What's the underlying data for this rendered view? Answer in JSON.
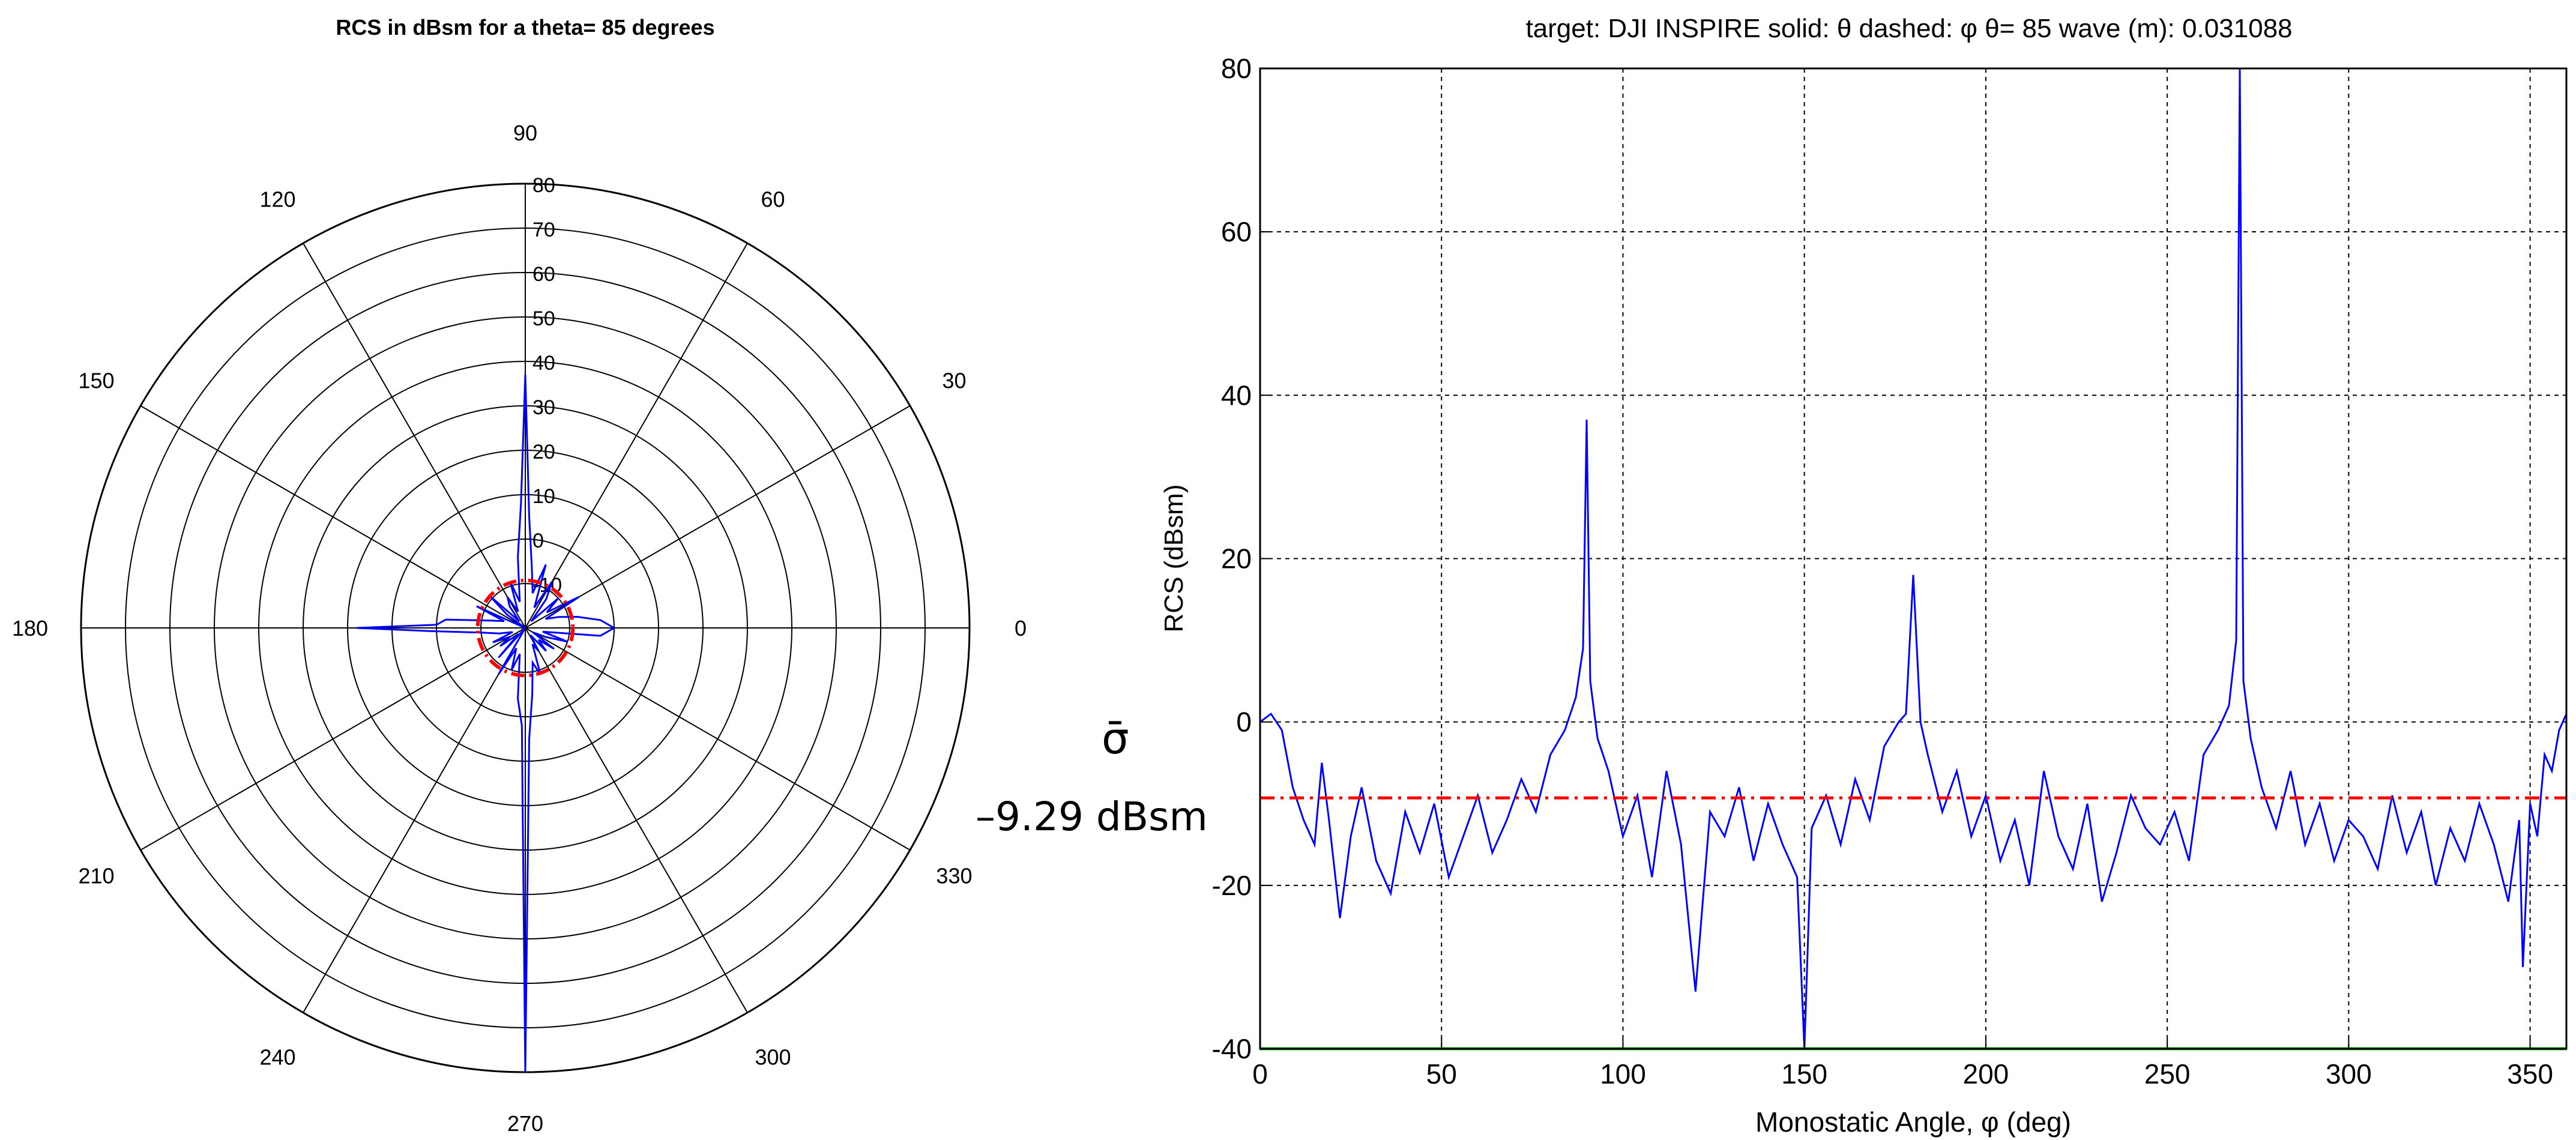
{
  "chart_data": [
    {
      "type": "polar",
      "title": "RCS in dBsm for a theta= 85 degrees",
      "angle_ticks": [
        "0",
        "30",
        "60",
        "90",
        "120",
        "150",
        "180",
        "210",
        "240",
        "270",
        "300",
        "330"
      ],
      "radial_ticks": [
        "80",
        "70",
        "60",
        "50",
        "40",
        "30",
        "20",
        "10",
        "0",
        "-10"
      ],
      "rlim": [
        -20,
        80
      ],
      "grid": true,
      "series": [
        {
          "color": "#0000ff",
          "style": "solid",
          "theta_deg": [
            0,
            6,
            12,
            18,
            24,
            30,
            36,
            42,
            48,
            54,
            60,
            66,
            72,
            78,
            84,
            88,
            90,
            92,
            96,
            102,
            108,
            114,
            120,
            126,
            132,
            138,
            144,
            150,
            156,
            162,
            168,
            174,
            178,
            180,
            182,
            186,
            192,
            198,
            204,
            210,
            216,
            222,
            228,
            234,
            240,
            246,
            252,
            258,
            264,
            268,
            270,
            272,
            276,
            282,
            288,
            294,
            300,
            306,
            312,
            318,
            324,
            330,
            336,
            342,
            348,
            354,
            360
          ],
          "r_dbsm": [
            0,
            -3,
            -8,
            -12,
            -15,
            -6,
            -14,
            -10,
            -18,
            -12,
            -8,
            -15,
            -5,
            -12,
            -6,
            5,
            37,
            8,
            -4,
            -14,
            -9,
            -16,
            -12,
            -14,
            -18,
            -9,
            -15,
            -30,
            -8,
            -15,
            -12,
            -2,
            0,
            18,
            1,
            -10,
            -14,
            -17,
            -12,
            -16,
            -13,
            -18,
            -11,
            -20,
            -8,
            -15,
            -10,
            -14,
            -4,
            2,
            80,
            5,
            -5,
            -12,
            -9,
            -16,
            -14,
            -18,
            -13,
            -16,
            -12,
            -18,
            -15,
            -10,
            -16,
            -3,
            0
          ]
        },
        {
          "color": "#ff0000",
          "style": "dash-dot",
          "constant_dbsm": -9.29
        }
      ]
    },
    {
      "type": "line",
      "title": "target: DJI INSPIRE   solid: θ       dashed: φ       θ= 85     wave (m): 0.031088",
      "xlabel": "Monostatic Angle, φ (deg)",
      "ylabel": "RCS (dBsm)",
      "xlim": [
        0,
        360
      ],
      "ylim": [
        -40,
        80
      ],
      "xticks": [
        0,
        50,
        100,
        150,
        200,
        250,
        300,
        350
      ],
      "yticks": [
        -40,
        -20,
        0,
        20,
        40,
        60,
        80
      ],
      "grid": true,
      "series": [
        {
          "color": "#0000ff",
          "style": "solid",
          "x": [
            0,
            3,
            6,
            9,
            12,
            15,
            17,
            19,
            22,
            25,
            28,
            32,
            36,
            40,
            44,
            48,
            52,
            56,
            60,
            64,
            68,
            72,
            76,
            80,
            84,
            87,
            89,
            90,
            91,
            93,
            96,
            100,
            104,
            108,
            112,
            116,
            120,
            124,
            128,
            132,
            136,
            140,
            144,
            148,
            150,
            152,
            156,
            160,
            164,
            168,
            172,
            176,
            178,
            180,
            182,
            184,
            188,
            192,
            196,
            200,
            204,
            208,
            212,
            216,
            220,
            224,
            228,
            232,
            236,
            240,
            244,
            248,
            252,
            256,
            260,
            264,
            267,
            269,
            270,
            271,
            273,
            276,
            280,
            284,
            288,
            292,
            296,
            300,
            304,
            308,
            312,
            316,
            320,
            324,
            328,
            332,
            336,
            340,
            344,
            347,
            348,
            350,
            352,
            354,
            356,
            358,
            360
          ],
          "y": [
            0,
            1,
            -1,
            -8,
            -12,
            -15,
            -5,
            -12,
            -24,
            -14,
            -8,
            -17,
            -21,
            -11,
            -16,
            -10,
            -19,
            -14,
            -9,
            -16,
            -12,
            -7,
            -11,
            -4,
            -1,
            3,
            9,
            37,
            5,
            -2,
            -6,
            -14,
            -9,
            -19,
            -6,
            -15,
            -33,
            -11,
            -14,
            -8,
            -17,
            -10,
            -15,
            -19,
            -40,
            -13,
            -9,
            -15,
            -7,
            -12,
            -3,
            0,
            1,
            18,
            0,
            -4,
            -11,
            -6,
            -14,
            -9,
            -17,
            -12,
            -20,
            -6,
            -14,
            -18,
            -10,
            -22,
            -16,
            -9,
            -13,
            -15,
            -11,
            -17,
            -4,
            -1,
            2,
            10,
            80,
            5,
            -2,
            -8,
            -13,
            -6,
            -15,
            -10,
            -17,
            -12,
            -14,
            -18,
            -9,
            -16,
            -11,
            -20,
            -13,
            -17,
            -10,
            -15,
            -22,
            -12,
            -30,
            -10,
            -14,
            -4,
            -6,
            -1,
            1
          ],
          "visible_peaks": [
            {
              "x": 90,
              "y": 37
            },
            {
              "x": 180,
              "y": 18
            },
            {
              "x": 270,
              "y": 80
            }
          ]
        },
        {
          "color": "#ff0000",
          "style": "dash-dot",
          "constant_y": -9.29
        },
        {
          "color": "#00aa00",
          "style": "solid",
          "constant_y": -40
        }
      ]
    }
  ],
  "annotation": {
    "symbol": "σ̄",
    "value_text": "–9.29 dBsm"
  }
}
